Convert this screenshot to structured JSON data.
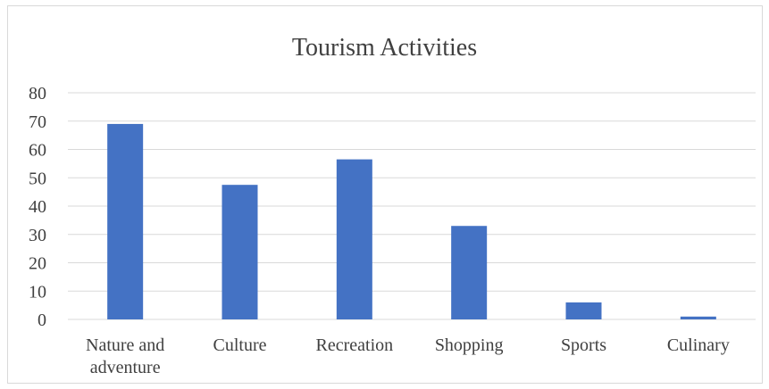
{
  "chart_data": {
    "type": "bar",
    "title": "Tourism Activities",
    "xlabel": "",
    "ylabel": "",
    "categories": [
      "Nature and adventure",
      "Culture",
      "Recreation",
      "Shopping",
      "Sports",
      "Culinary"
    ],
    "category_label_lines": [
      [
        "Nature and",
        "adventure"
      ],
      [
        "Culture"
      ],
      [
        "Recreation"
      ],
      [
        "Shopping"
      ],
      [
        "Sports"
      ],
      [
        "Culinary"
      ]
    ],
    "values": [
      69,
      47.5,
      56.5,
      33,
      6,
      1
    ],
    "ylim": [
      0,
      80
    ],
    "yticks": [
      0,
      10,
      20,
      30,
      40,
      50,
      60,
      70,
      80
    ],
    "grid": true,
    "legend": "none",
    "bar_color": "#4472C4",
    "grid_color": "#d9d9d9",
    "text_color": "#404040"
  }
}
